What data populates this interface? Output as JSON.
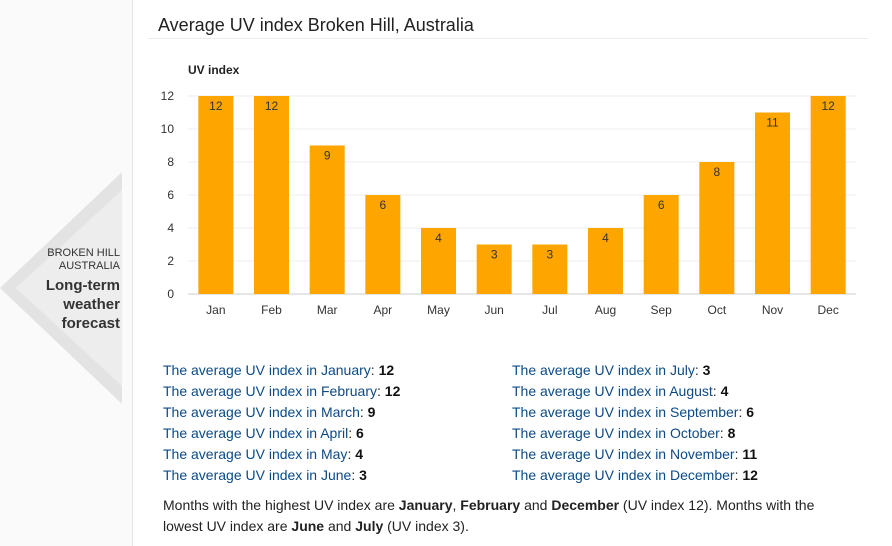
{
  "sidebar": {
    "location_line1": "BROKEN HILL",
    "location_line2": "AUSTRALIA",
    "forecast_line1": "Long-term",
    "forecast_line2": "weather",
    "forecast_line3": "forecast"
  },
  "title": "Average UV index Broken Hill, Australia",
  "chart_data": {
    "type": "bar",
    "title": "Average UV index Broken Hill, Australia",
    "ylabel": "UV index",
    "xlabel": "",
    "categories": [
      "Jan",
      "Feb",
      "Mar",
      "Apr",
      "May",
      "Jun",
      "Jul",
      "Aug",
      "Sep",
      "Oct",
      "Nov",
      "Dec"
    ],
    "values": [
      12,
      12,
      9,
      6,
      4,
      3,
      3,
      4,
      6,
      8,
      11,
      12
    ],
    "ylim": [
      0,
      12
    ],
    "yticks": [
      0,
      2,
      4,
      6,
      8,
      10,
      12
    ],
    "grid": true,
    "bar_color": "#ffa500",
    "data_labels": true
  },
  "stats": {
    "left": [
      {
        "label": "The average UV index in January",
        "value": "12"
      },
      {
        "label": "The average UV index in February",
        "value": "12"
      },
      {
        "label": "The average UV index in March",
        "value": "9"
      },
      {
        "label": "The average UV index in April",
        "value": "6"
      },
      {
        "label": "The average UV index in May",
        "value": "4"
      },
      {
        "label": "The average UV index in June",
        "value": "3"
      }
    ],
    "right": [
      {
        "label": "The average UV index in July",
        "value": "3"
      },
      {
        "label": "The average UV index in August",
        "value": "4"
      },
      {
        "label": "The average UV index in September",
        "value": "6"
      },
      {
        "label": "The average UV index in October",
        "value": "8"
      },
      {
        "label": "The average UV index in November",
        "value": "11"
      },
      {
        "label": "The average UV index in December",
        "value": "12"
      }
    ]
  },
  "summary": {
    "p1": "Months with the highest UV index are ",
    "m1": "January",
    "p2": ", ",
    "m2": "February",
    "p3": " and ",
    "m3": "December",
    "p4": " (UV index 12). Months with the lowest UV index are ",
    "m4": "June",
    "p5": " and ",
    "m5": "July",
    "p6": " (UV index 3)."
  }
}
